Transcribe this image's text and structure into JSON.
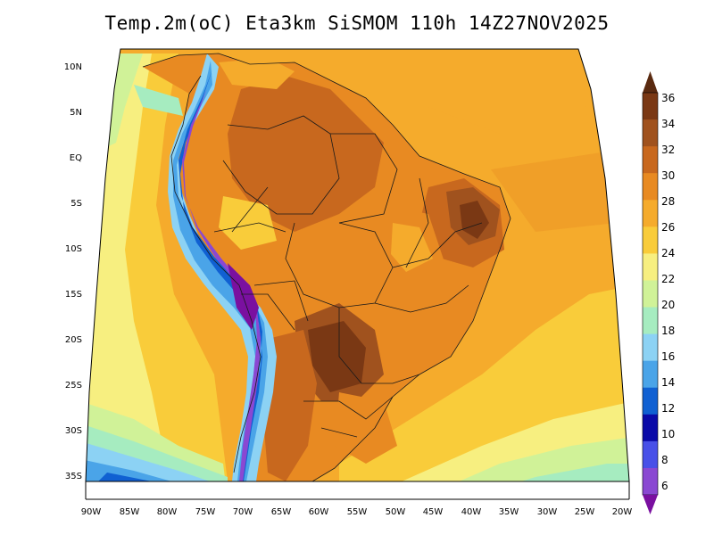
{
  "title": "Temp.2m(oC) Eta3km SiSMOM 110h 14Z27NOV2025",
  "map": {
    "lat_ticks": [
      "10N",
      "5N",
      "EQ",
      "5S",
      "10S",
      "15S",
      "20S",
      "25S",
      "30S",
      "35S"
    ],
    "lon_ticks": [
      "90W",
      "85W",
      "80W",
      "75W",
      "70W",
      "65W",
      "60W",
      "55W",
      "50W",
      "45W",
      "40W",
      "35W",
      "30W",
      "25W",
      "20W"
    ]
  },
  "colorbar": {
    "labels": [
      "36",
      "34",
      "32",
      "30",
      "28",
      "26",
      "24",
      "22",
      "20",
      "18",
      "16",
      "14",
      "12",
      "10",
      "8",
      "6"
    ],
    "colors": [
      "#5a2a10",
      "#7a3814",
      "#a0521e",
      "#c8681e",
      "#e88a22",
      "#f5ab2c",
      "#f9cc3a",
      "#f7ef80",
      "#d0f298",
      "#a6ecc0",
      "#8cd2f4",
      "#4aa4e8",
      "#1060d2",
      "#0a0aa8",
      "#4850e8",
      "#8a48d2",
      "#7a10a0"
    ]
  }
}
